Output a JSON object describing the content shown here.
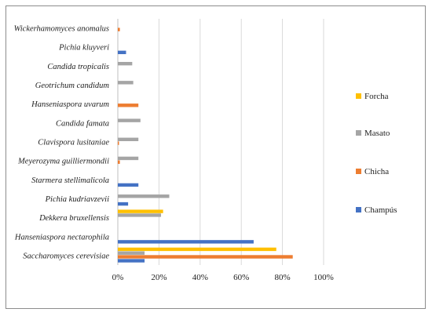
{
  "chart_data": {
    "type": "bar",
    "orientation": "horizontal",
    "categories": [
      "Saccharomyces cerevisiae",
      "Hanseniaspora nectarophila",
      "Dekkera bruxellensis",
      "Pichia kudriavzevii",
      "Starmera stellimalicola",
      "Meyerozyma guilliermondii",
      "Clavispora lusitaniae",
      "Candida famata",
      "Hanseniaspora uvarum",
      "Geotrichum candidum",
      "Candida tropicalis",
      "Pichia kluyveri",
      "Wickerhamomyces anomalus"
    ],
    "series": [
      {
        "name": "Champús",
        "color": "#4472c4",
        "values": [
          0.13,
          0.66,
          0,
          0.05,
          0.1,
          0,
          0,
          0,
          0,
          0,
          0,
          0.04,
          0
        ]
      },
      {
        "name": "Chicha",
        "color": "#ed7d31",
        "values": [
          0.85,
          0,
          0,
          0,
          0,
          0.01,
          0.005,
          0,
          0.1,
          0,
          0,
          0,
          0.01
        ]
      },
      {
        "name": "Masato",
        "color": "#a5a5a5",
        "values": [
          0.13,
          0,
          0.21,
          0.25,
          0,
          0.1,
          0.1,
          0.11,
          0,
          0.075,
          0.07,
          0,
          0
        ]
      },
      {
        "name": "Forcha",
        "color": "#ffc000",
        "values": [
          0.77,
          0,
          0.22,
          0,
          0,
          0,
          0,
          0,
          0,
          0,
          0,
          0,
          0
        ]
      }
    ],
    "xlim": [
      0,
      1
    ],
    "xticks": [
      "0%",
      "20%",
      "40%",
      "60%",
      "80%",
      "100%"
    ],
    "legend_order": [
      "Forcha",
      "Masato",
      "Chicha",
      "Champús"
    ],
    "legend_position": "right",
    "grid": "vertical"
  }
}
